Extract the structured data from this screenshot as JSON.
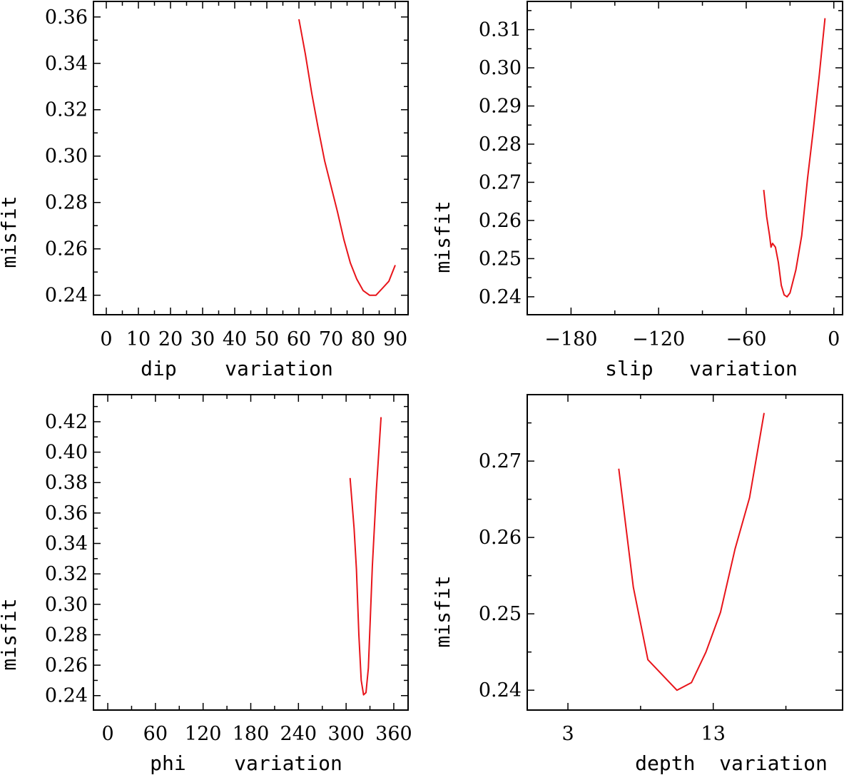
{
  "colors": {
    "series": "#e8141a",
    "axes": "#000000",
    "background": "#ffffff"
  },
  "chart_data": [
    {
      "type": "line",
      "xlabel": "dip    variation",
      "ylabel": "misfit",
      "xlim": [
        -4,
        94
      ],
      "ylim": [
        0.2316,
        0.3667
      ],
      "x_ticks": [
        0,
        10,
        20,
        30,
        40,
        50,
        60,
        70,
        80,
        90
      ],
      "x_tick_labels": [
        "0",
        "10",
        "20",
        "30",
        "40",
        "50",
        "60",
        "70",
        "80",
        "90"
      ],
      "y_ticks": [
        0.24,
        0.26,
        0.28,
        0.3,
        0.32,
        0.34,
        0.36
      ],
      "y_tick_labels": [
        "0.24",
        "0.26",
        "0.28",
        "0.30",
        "0.32",
        "0.34",
        "0.36"
      ],
      "series": [
        {
          "x": [
            60,
            62,
            64,
            66,
            68,
            70,
            72,
            74,
            76,
            78,
            80,
            82,
            84,
            86,
            88,
            90
          ],
          "y": [
            0.359,
            0.344,
            0.327,
            0.312,
            0.298,
            0.287,
            0.276,
            0.264,
            0.254,
            0.247,
            0.242,
            0.24,
            0.24,
            0.243,
            0.246,
            0.253
          ]
        }
      ]
    },
    {
      "type": "line",
      "xlabel": "slip   variation",
      "ylabel": "misfit",
      "xlim": [
        -210,
        6
      ],
      "ylim": [
        0.2353,
        0.3174
      ],
      "x_ticks": [
        -180,
        -120,
        -60,
        0
      ],
      "x_tick_labels": [
        "−180",
        "−120",
        "−60",
        "0"
      ],
      "y_ticks": [
        0.24,
        0.25,
        0.26,
        0.27,
        0.28,
        0.29,
        0.3,
        0.31
      ],
      "y_tick_labels": [
        "0.24",
        "0.25",
        "0.26",
        "0.27",
        "0.28",
        "0.29",
        "0.30",
        "0.31"
      ],
      "series": [
        {
          "x": [
            -48,
            -46,
            -44,
            -43,
            -42,
            -40,
            -38,
            -36,
            -34,
            -32,
            -30,
            -26,
            -22,
            -18,
            -14,
            -10,
            -6
          ],
          "y": [
            0.268,
            0.261,
            0.256,
            0.253,
            0.254,
            0.253,
            0.249,
            0.243,
            0.2405,
            0.24,
            0.241,
            0.247,
            0.256,
            0.271,
            0.284,
            0.298,
            0.313
          ]
        }
      ]
    },
    {
      "type": "line",
      "xlabel": "phi    variation",
      "ylabel": "misfit",
      "xlim": [
        -18,
        378
      ],
      "ylim": [
        0.2305,
        0.4378
      ],
      "x_ticks": [
        0,
        60,
        120,
        180,
        240,
        300,
        360
      ],
      "x_tick_labels": [
        "0",
        "60",
        "120",
        "180",
        "240",
        "300",
        "360"
      ],
      "y_ticks": [
        0.24,
        0.26,
        0.28,
        0.3,
        0.32,
        0.34,
        0.36,
        0.38,
        0.4,
        0.42
      ],
      "y_tick_labels": [
        "0.24",
        "0.26",
        "0.28",
        "0.30",
        "0.32",
        "0.34",
        "0.36",
        "0.38",
        "0.40",
        "0.42"
      ],
      "series": [
        {
          "x": [
            305,
            310,
            313,
            316,
            319,
            322,
            325,
            328,
            333,
            338,
            344
          ],
          "y": [
            0.383,
            0.35,
            0.323,
            0.28,
            0.25,
            0.2405,
            0.242,
            0.258,
            0.325,
            0.375,
            0.423
          ]
        }
      ]
    },
    {
      "type": "line",
      "xlabel": "depth  variation",
      "ylabel": "misfit",
      "xlim": [
        0.2,
        21.9
      ],
      "ylim": [
        0.2374,
        0.2787
      ],
      "x_ticks": [
        3,
        13
      ],
      "x_tick_labels": [
        "3",
        "13"
      ],
      "y_ticks": [
        0.24,
        0.25,
        0.26,
        0.27
      ],
      "y_tick_labels": [
        "0.24",
        "0.25",
        "0.26",
        "0.27"
      ],
      "series": [
        {
          "x": [
            6.5,
            7.5,
            8.5,
            10.5,
            11.5,
            12.5,
            13.5,
            14.5,
            15.5,
            16.5
          ],
          "y": [
            0.269,
            0.2535,
            0.244,
            0.24,
            0.241,
            0.245,
            0.2502,
            0.2585,
            0.2652,
            0.2763
          ]
        }
      ]
    }
  ]
}
